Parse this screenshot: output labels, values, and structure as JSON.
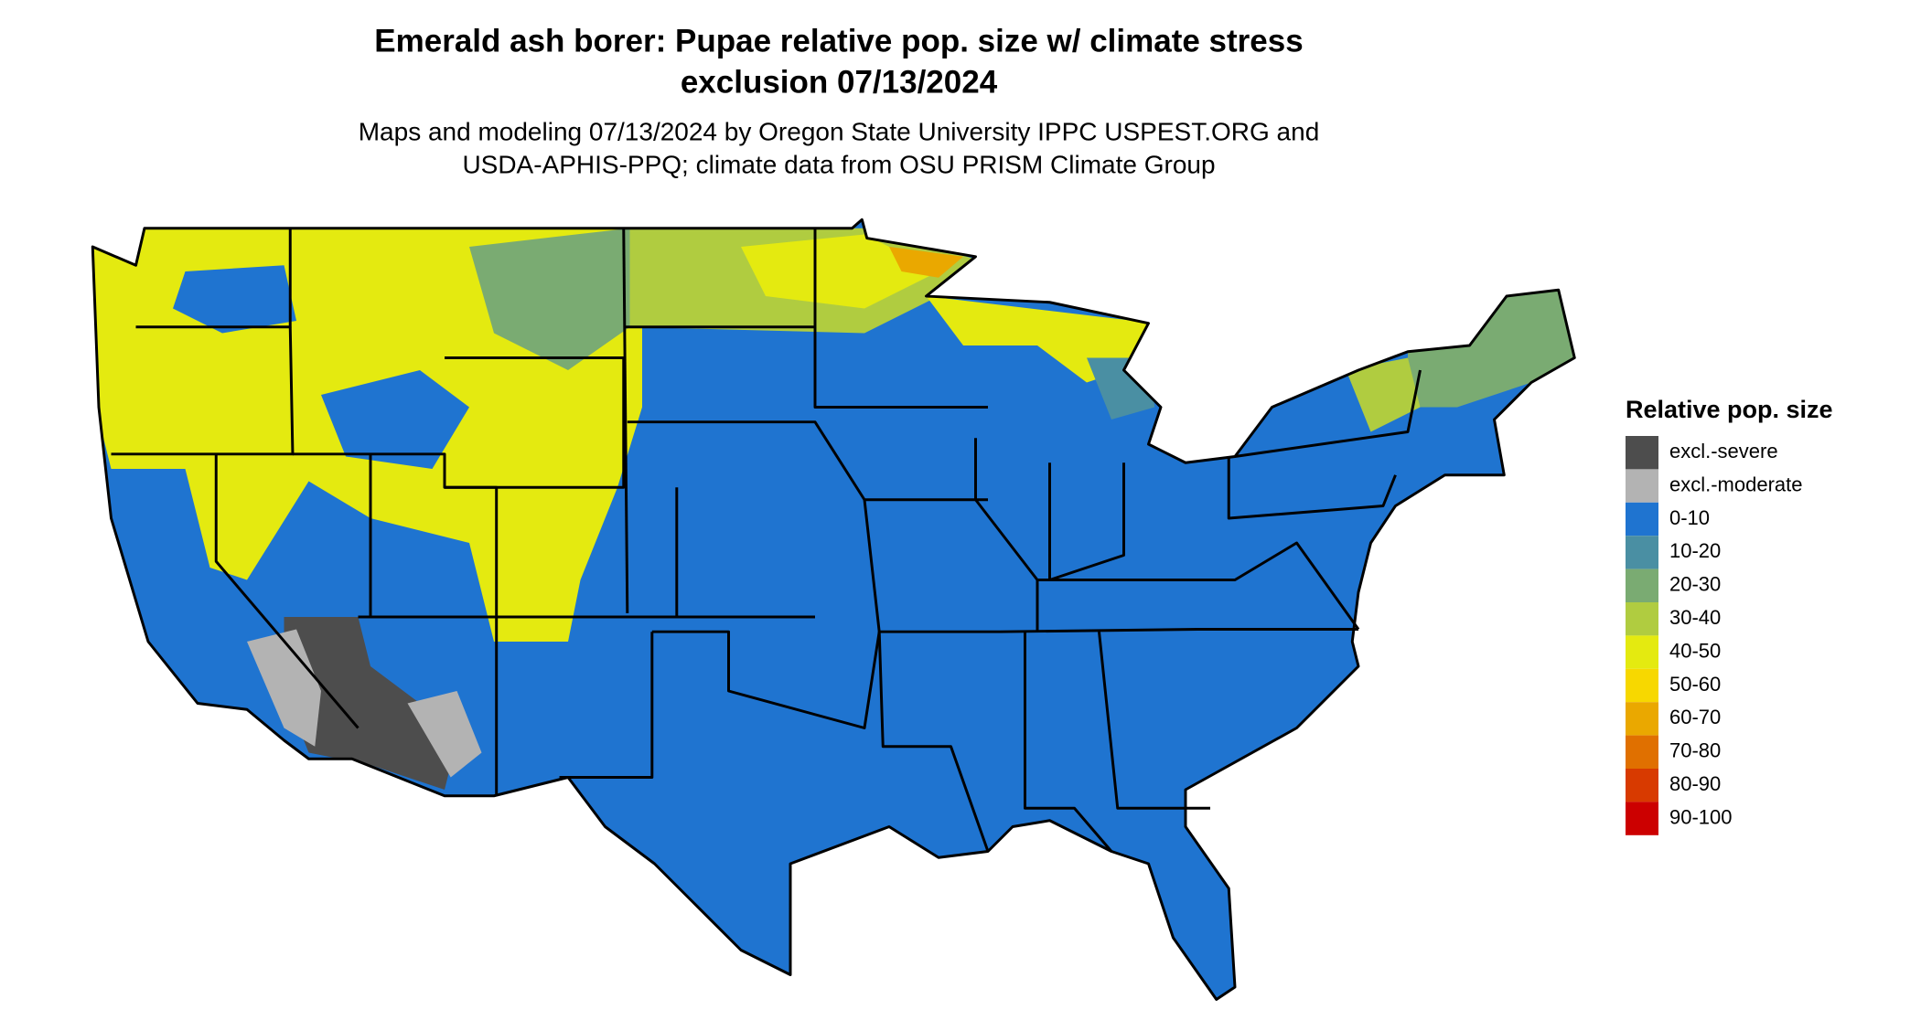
{
  "header": {
    "title": [
      "Emerald ash borer: Pupae relative pop. size w/ climate stress",
      "exclusion 07/13/2024"
    ],
    "subtitle": [
      "Maps and modeling 07/13/2024 by Oregon State University IPPC USPEST.ORG and",
      "USDA-APHIS-PPQ; climate data from OSU PRISM Climate Group"
    ]
  },
  "legend": {
    "title": "Relative pop. size",
    "items": [
      {
        "label": "excl.-severe",
        "color": "#4d4d4d"
      },
      {
        "label": "excl.-moderate",
        "color": "#b3b3b3"
      },
      {
        "label": "0-10",
        "color": "#1f74d0"
      },
      {
        "label": "10-20",
        "color": "#4a8fa3"
      },
      {
        "label": "20-30",
        "color": "#7aab72"
      },
      {
        "label": "30-40",
        "color": "#b0cc40"
      },
      {
        "label": "40-50",
        "color": "#e4ea10"
      },
      {
        "label": "50-60",
        "color": "#f7d800"
      },
      {
        "label": "60-70",
        "color": "#eaa800"
      },
      {
        "label": "70-80",
        "color": "#e07000"
      },
      {
        "label": "80-90",
        "color": "#d83a00"
      },
      {
        "label": "90-100",
        "color": "#cc0000"
      }
    ]
  }
}
